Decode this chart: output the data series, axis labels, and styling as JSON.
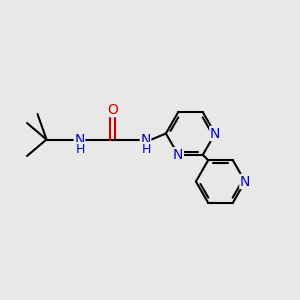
{
  "background_color": "#e8e8e8",
  "bond_color": "#000000",
  "bond_width": 1.5,
  "nitrogen_color": "#0000cd",
  "oxygen_color": "#cc0000",
  "font_size_atoms": 10,
  "fig_width": 3.0,
  "fig_height": 3.0,
  "dpi": 100,
  "xlim": [
    0,
    10
  ],
  "ylim": [
    0,
    10
  ]
}
